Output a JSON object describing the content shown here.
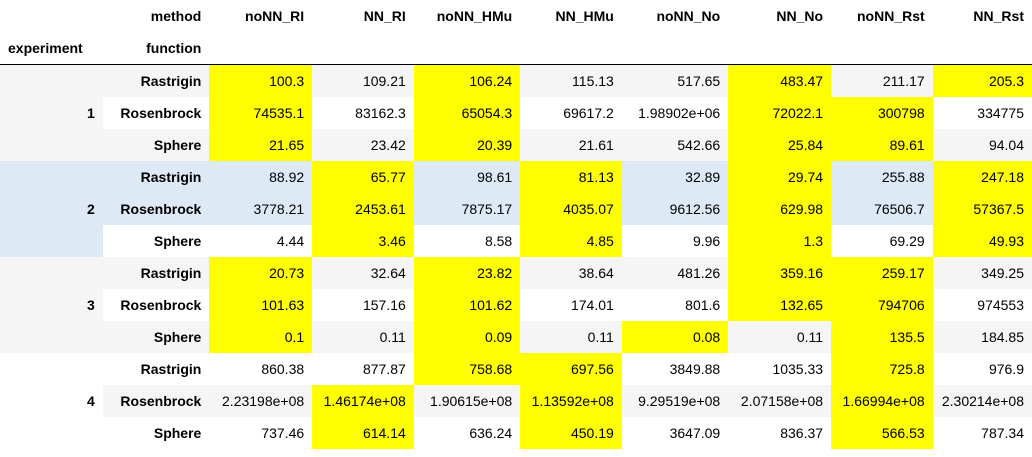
{
  "header": {
    "method_label": "method",
    "function_label": "function",
    "experiment_label": "experiment",
    "columns": [
      "noNN_RI",
      "NN_RI",
      "noNN_HMu",
      "NN_HMu",
      "noNN_No",
      "NN_No",
      "noNN_Rst",
      "NN_Rst"
    ]
  },
  "experiments": [
    {
      "label": "1",
      "rows": [
        {
          "function": "Rastrigin",
          "values": [
            "100.3",
            "109.21",
            "106.24",
            "115.13",
            "517.65",
            "483.47",
            "211.17",
            "205.3"
          ]
        },
        {
          "function": "Rosenbrock",
          "values": [
            "74535.1",
            "83162.3",
            "65054.3",
            "69617.2",
            "1.98902e+06",
            "72022.1",
            "300798",
            "334775"
          ]
        },
        {
          "function": "Sphere",
          "values": [
            "21.65",
            "23.42",
            "20.39",
            "21.61",
            "542.66",
            "25.84",
            "89.61",
            "94.04"
          ]
        }
      ]
    },
    {
      "label": "2",
      "rows": [
        {
          "function": "Rastrigin",
          "values": [
            "88.92",
            "65.77",
            "98.61",
            "81.13",
            "32.89",
            "29.74",
            "255.88",
            "247.18"
          ]
        },
        {
          "function": "Rosenbrock",
          "values": [
            "3778.21",
            "2453.61",
            "7875.17",
            "4035.07",
            "9612.56",
            "629.98",
            "76506.7",
            "57367.5"
          ]
        },
        {
          "function": "Sphere",
          "values": [
            "4.44",
            "3.46",
            "8.58",
            "4.85",
            "9.96",
            "1.3",
            "69.29",
            "49.93"
          ]
        }
      ]
    },
    {
      "label": "3",
      "rows": [
        {
          "function": "Rastrigin",
          "values": [
            "20.73",
            "32.64",
            "23.82",
            "38.64",
            "481.26",
            "359.16",
            "259.17",
            "349.25"
          ]
        },
        {
          "function": "Rosenbrock",
          "values": [
            "101.63",
            "157.16",
            "101.62",
            "174.01",
            "801.6",
            "132.65",
            "794706",
            "974553"
          ]
        },
        {
          "function": "Sphere",
          "values": [
            "0.1",
            "0.11",
            "0.09",
            "0.11",
            "0.08",
            "0.11",
            "135.5",
            "184.85"
          ]
        }
      ]
    },
    {
      "label": "4",
      "rows": [
        {
          "function": "Rastrigin",
          "values": [
            "860.38",
            "877.87",
            "758.68",
            "697.56",
            "3849.88",
            "1035.33",
            "725.8",
            "976.9"
          ]
        },
        {
          "function": "Rosenbrock",
          "values": [
            "2.23198e+08",
            "1.46174e+08",
            "1.90615e+08",
            "1.13592e+08",
            "9.29519e+08",
            "2.07158e+08",
            "1.66994e+08",
            "2.30214e+08"
          ]
        },
        {
          "function": "Sphere",
          "values": [
            "737.46",
            "614.14",
            "636.24",
            "450.19",
            "3647.09",
            "836.37",
            "566.53",
            "787.34"
          ]
        }
      ]
    }
  ],
  "highlight": {
    "color": "#ffff00",
    "cells": [
      [
        [
          0,
          2,
          5,
          7
        ],
        [
          0,
          2,
          5,
          6
        ],
        [
          0,
          2,
          5,
          6
        ]
      ],
      [
        [
          1,
          3,
          5,
          7
        ],
        [
          1,
          3,
          5,
          7
        ],
        [
          1,
          3,
          5,
          7
        ]
      ],
      [
        [
          0,
          2,
          5,
          6
        ],
        [
          0,
          2,
          5,
          6
        ],
        [
          0,
          2,
          4,
          6
        ]
      ],
      [
        [
          2,
          3,
          6
        ],
        [
          1,
          3,
          6
        ],
        [
          1,
          3,
          6
        ]
      ]
    ]
  },
  "hover_experiment_index": 1,
  "hover_color": "#dde9f5"
}
